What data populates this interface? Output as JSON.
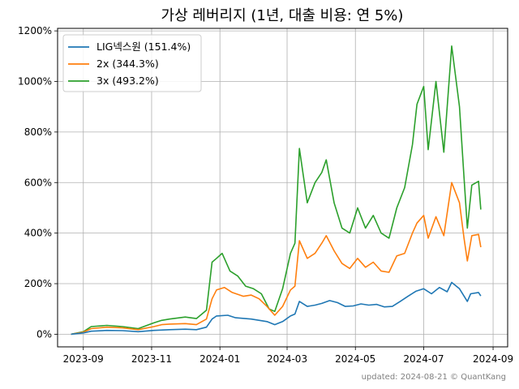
{
  "chart_data": {
    "type": "line",
    "title": "가상 레버리지 (1년, 대출 비용: 연 5%)",
    "xlabel": "",
    "ylabel": "",
    "x_ticks": [
      "2023-09",
      "2023-11",
      "2024-01",
      "2024-03",
      "2024-05",
      "2024-07",
      "2024-09"
    ],
    "x_tick_dates": [
      "2023-09-01",
      "2023-11-01",
      "2024-01-01",
      "2024-03-01",
      "2024-05-01",
      "2024-07-01",
      "2024-09-01"
    ],
    "xlim": [
      "2023-08-09",
      "2024-09-14"
    ],
    "y_ticks": [
      "0%",
      "200%",
      "400%",
      "600%",
      "800%",
      "1000%",
      "1200%"
    ],
    "y_tick_values": [
      0,
      200,
      400,
      600,
      800,
      1000,
      1200
    ],
    "ylim": [
      -50,
      1210
    ],
    "grid": true,
    "legend_position": "top-left",
    "footer": "updated: 2024-08-21 © QuantKang",
    "series": [
      {
        "name": "LIG넥스원 (151.4%)",
        "color": "#1f77b4",
        "points": [
          [
            "2023-08-21",
            0
          ],
          [
            "2023-09-01",
            5
          ],
          [
            "2023-09-08",
            12
          ],
          [
            "2023-09-22",
            15
          ],
          [
            "2023-10-06",
            14
          ],
          [
            "2023-10-20",
            10
          ],
          [
            "2023-11-03",
            15
          ],
          [
            "2023-11-17",
            18
          ],
          [
            "2023-12-01",
            20
          ],
          [
            "2023-12-11",
            18
          ],
          [
            "2023-12-20",
            28
          ],
          [
            "2023-12-25",
            60
          ],
          [
            "2023-12-29",
            72
          ],
          [
            "2024-01-08",
            75
          ],
          [
            "2024-01-15",
            65
          ],
          [
            "2024-01-29",
            60
          ],
          [
            "2024-02-12",
            50
          ],
          [
            "2024-02-19",
            38
          ],
          [
            "2024-02-26",
            50
          ],
          [
            "2024-03-04",
            72
          ],
          [
            "2024-03-08",
            80
          ],
          [
            "2024-03-12",
            130
          ],
          [
            "2024-03-19",
            110
          ],
          [
            "2024-03-26",
            115
          ],
          [
            "2024-04-01",
            122
          ],
          [
            "2024-04-08",
            133
          ],
          [
            "2024-04-15",
            125
          ],
          [
            "2024-04-22",
            110
          ],
          [
            "2024-04-29",
            112
          ],
          [
            "2024-05-06",
            120
          ],
          [
            "2024-05-13",
            115
          ],
          [
            "2024-05-20",
            118
          ],
          [
            "2024-05-27",
            108
          ],
          [
            "2024-06-03",
            110
          ],
          [
            "2024-06-10",
            130
          ],
          [
            "2024-06-17",
            150
          ],
          [
            "2024-06-24",
            170
          ],
          [
            "2024-07-01",
            180
          ],
          [
            "2024-07-08",
            160
          ],
          [
            "2024-07-15",
            185
          ],
          [
            "2024-07-22",
            168
          ],
          [
            "2024-07-26",
            205
          ],
          [
            "2024-08-02",
            180
          ],
          [
            "2024-08-09",
            130
          ],
          [
            "2024-08-12",
            160
          ],
          [
            "2024-08-19",
            165
          ],
          [
            "2024-08-21",
            151.4
          ]
        ]
      },
      {
        "name": "2x (344.3%)",
        "color": "#ff7f0e",
        "points": [
          [
            "2023-08-21",
            0
          ],
          [
            "2023-09-01",
            8
          ],
          [
            "2023-09-08",
            22
          ],
          [
            "2023-09-22",
            28
          ],
          [
            "2023-10-06",
            25
          ],
          [
            "2023-10-20",
            18
          ],
          [
            "2023-11-03",
            30
          ],
          [
            "2023-11-10",
            38
          ],
          [
            "2023-11-17",
            40
          ],
          [
            "2023-12-01",
            42
          ],
          [
            "2023-12-11",
            38
          ],
          [
            "2023-12-20",
            60
          ],
          [
            "2023-12-25",
            140
          ],
          [
            "2023-12-29",
            175
          ],
          [
            "2024-01-05",
            185
          ],
          [
            "2024-01-12",
            165
          ],
          [
            "2024-01-22",
            150
          ],
          [
            "2024-01-29",
            155
          ],
          [
            "2024-02-05",
            140
          ],
          [
            "2024-02-12",
            110
          ],
          [
            "2024-02-19",
            75
          ],
          [
            "2024-02-26",
            110
          ],
          [
            "2024-03-04",
            175
          ],
          [
            "2024-03-08",
            190
          ],
          [
            "2024-03-12",
            370
          ],
          [
            "2024-03-19",
            300
          ],
          [
            "2024-03-26",
            320
          ],
          [
            "2024-04-01",
            360
          ],
          [
            "2024-04-05",
            390
          ],
          [
            "2024-04-12",
            330
          ],
          [
            "2024-04-19",
            280
          ],
          [
            "2024-04-26",
            260
          ],
          [
            "2024-05-03",
            300
          ],
          [
            "2024-05-10",
            265
          ],
          [
            "2024-05-17",
            285
          ],
          [
            "2024-05-24",
            250
          ],
          [
            "2024-05-31",
            245
          ],
          [
            "2024-06-07",
            310
          ],
          [
            "2024-06-14",
            320
          ],
          [
            "2024-06-21",
            400
          ],
          [
            "2024-06-25",
            440
          ],
          [
            "2024-07-01",
            470
          ],
          [
            "2024-07-05",
            380
          ],
          [
            "2024-07-12",
            465
          ],
          [
            "2024-07-19",
            390
          ],
          [
            "2024-07-26",
            600
          ],
          [
            "2024-08-02",
            520
          ],
          [
            "2024-08-06",
            380
          ],
          [
            "2024-08-09",
            290
          ],
          [
            "2024-08-13",
            390
          ],
          [
            "2024-08-19",
            395
          ],
          [
            "2024-08-21",
            344.3
          ]
        ]
      },
      {
        "name": "3x (493.2%)",
        "color": "#2ca02c",
        "points": [
          [
            "2023-08-21",
            0
          ],
          [
            "2023-09-01",
            10
          ],
          [
            "2023-09-08",
            30
          ],
          [
            "2023-09-22",
            35
          ],
          [
            "2023-10-06",
            30
          ],
          [
            "2023-10-20",
            22
          ],
          [
            "2023-11-03",
            45
          ],
          [
            "2023-11-10",
            55
          ],
          [
            "2023-11-17",
            60
          ],
          [
            "2023-12-01",
            68
          ],
          [
            "2023-12-11",
            62
          ],
          [
            "2023-12-20",
            95
          ],
          [
            "2023-12-25",
            285
          ],
          [
            "2023-12-29",
            300
          ],
          [
            "2024-01-03",
            320
          ],
          [
            "2024-01-10",
            250
          ],
          [
            "2024-01-17",
            230
          ],
          [
            "2024-01-24",
            190
          ],
          [
            "2024-01-31",
            180
          ],
          [
            "2024-02-07",
            160
          ],
          [
            "2024-02-14",
            100
          ],
          [
            "2024-02-19",
            90
          ],
          [
            "2024-02-26",
            180
          ],
          [
            "2024-03-04",
            320
          ],
          [
            "2024-03-08",
            360
          ],
          [
            "2024-03-12",
            735
          ],
          [
            "2024-03-19",
            520
          ],
          [
            "2024-03-26",
            600
          ],
          [
            "2024-04-01",
            640
          ],
          [
            "2024-04-05",
            690
          ],
          [
            "2024-04-12",
            520
          ],
          [
            "2024-04-19",
            420
          ],
          [
            "2024-04-26",
            400
          ],
          [
            "2024-05-03",
            500
          ],
          [
            "2024-05-10",
            420
          ],
          [
            "2024-05-17",
            470
          ],
          [
            "2024-05-24",
            400
          ],
          [
            "2024-05-31",
            380
          ],
          [
            "2024-06-07",
            500
          ],
          [
            "2024-06-14",
            580
          ],
          [
            "2024-06-21",
            750
          ],
          [
            "2024-06-25",
            910
          ],
          [
            "2024-07-01",
            980
          ],
          [
            "2024-07-05",
            730
          ],
          [
            "2024-07-12",
            1000
          ],
          [
            "2024-07-19",
            720
          ],
          [
            "2024-07-26",
            1140
          ],
          [
            "2024-08-02",
            900
          ],
          [
            "2024-08-06",
            620
          ],
          [
            "2024-08-09",
            420
          ],
          [
            "2024-08-13",
            590
          ],
          [
            "2024-08-19",
            605
          ],
          [
            "2024-08-21",
            493.2
          ]
        ]
      }
    ]
  }
}
